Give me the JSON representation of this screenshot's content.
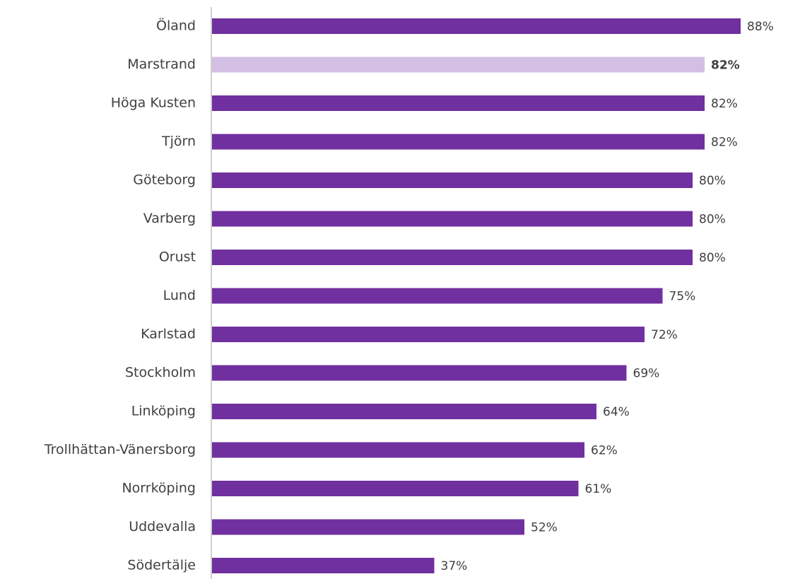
{
  "chart_data": {
    "type": "hbar",
    "categories": [
      "Öland",
      "Marstrand",
      "Höga Kusten",
      "Tjörn",
      "Göteborg",
      "Varberg",
      "Orust",
      "Lund",
      "Karlstad",
      "Stockholm",
      "Linköping",
      "Trollhättan-Vänersborg",
      "Norrköping",
      "Uddevalla",
      "Södertälje"
    ],
    "values": [
      88,
      82,
      82,
      82,
      80,
      80,
      80,
      75,
      72,
      69,
      64,
      62,
      61,
      52,
      37
    ],
    "value_labels": [
      "88%",
      "82%",
      "82%",
      "82%",
      "80%",
      "80%",
      "80%",
      "75%",
      "72%",
      "69%",
      "64%",
      "62%",
      "61%",
      "52%",
      "37%"
    ],
    "color": "#7030a0",
    "highlight": {
      "index": 1,
      "color": "#d4bfe4",
      "bold": true
    },
    "xlim": [
      0,
      100
    ]
  }
}
